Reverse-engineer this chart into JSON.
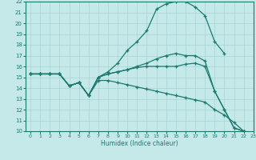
{
  "title": "",
  "xlabel": "Humidex (Indice chaleur)",
  "xlim": [
    -0.5,
    23
  ],
  "ylim": [
    10,
    22
  ],
  "xticks": [
    0,
    1,
    2,
    3,
    4,
    5,
    6,
    7,
    8,
    9,
    10,
    11,
    12,
    13,
    14,
    15,
    16,
    17,
    18,
    19,
    20,
    21,
    22,
    23
  ],
  "yticks": [
    10,
    11,
    12,
    13,
    14,
    15,
    16,
    17,
    18,
    19,
    20,
    21,
    22
  ],
  "bg_color": "#c5e8e8",
  "line_color": "#1a7a70",
  "grid_color": "#a8d4d4",
  "curves": [
    {
      "x": [
        0,
        1,
        2,
        3,
        4,
        5,
        6,
        7,
        8,
        9,
        10,
        11,
        12,
        13,
        14,
        15,
        16,
        17,
        18,
        19,
        20,
        21,
        22
      ],
      "y": [
        15.3,
        15.3,
        15.3,
        15.3,
        14.2,
        14.5,
        13.3,
        15.0,
        15.3,
        15.5,
        15.7,
        16.0,
        16.3,
        16.7,
        17.0,
        17.2,
        17.0,
        17.0,
        16.5,
        13.7,
        12.0,
        10.3,
        10.0
      ]
    },
    {
      "x": [
        0,
        1,
        2,
        3,
        4,
        5,
        6,
        7,
        8,
        9,
        10,
        11,
        12,
        13,
        14,
        15,
        16,
        17,
        18,
        19,
        20
      ],
      "y": [
        15.3,
        15.3,
        15.3,
        15.3,
        14.2,
        14.5,
        13.3,
        15.0,
        15.5,
        16.3,
        17.5,
        18.3,
        19.3,
        21.3,
        21.8,
        22.0,
        22.0,
        21.5,
        20.7,
        18.3,
        17.2
      ]
    },
    {
      "x": [
        0,
        1,
        2,
        3,
        4,
        5,
        6,
        7,
        8,
        9,
        10,
        11,
        12,
        13,
        14,
        15,
        16,
        17,
        18,
        19,
        20,
        21,
        22
      ],
      "y": [
        15.3,
        15.3,
        15.3,
        15.3,
        14.2,
        14.5,
        13.3,
        15.0,
        15.3,
        15.5,
        15.7,
        15.9,
        16.0,
        16.0,
        16.0,
        16.0,
        16.2,
        16.3,
        16.0,
        13.7,
        12.0,
        10.3,
        10.0
      ]
    },
    {
      "x": [
        0,
        1,
        2,
        3,
        4,
        5,
        6,
        7,
        8,
        9,
        10,
        11,
        12,
        13,
        14,
        15,
        16,
        17,
        18,
        19,
        20,
        21,
        22
      ],
      "y": [
        15.3,
        15.3,
        15.3,
        15.3,
        14.2,
        14.5,
        13.3,
        14.7,
        14.7,
        14.5,
        14.3,
        14.1,
        13.9,
        13.7,
        13.5,
        13.3,
        13.1,
        12.9,
        12.7,
        12.0,
        11.5,
        10.8,
        10.0
      ]
    }
  ]
}
